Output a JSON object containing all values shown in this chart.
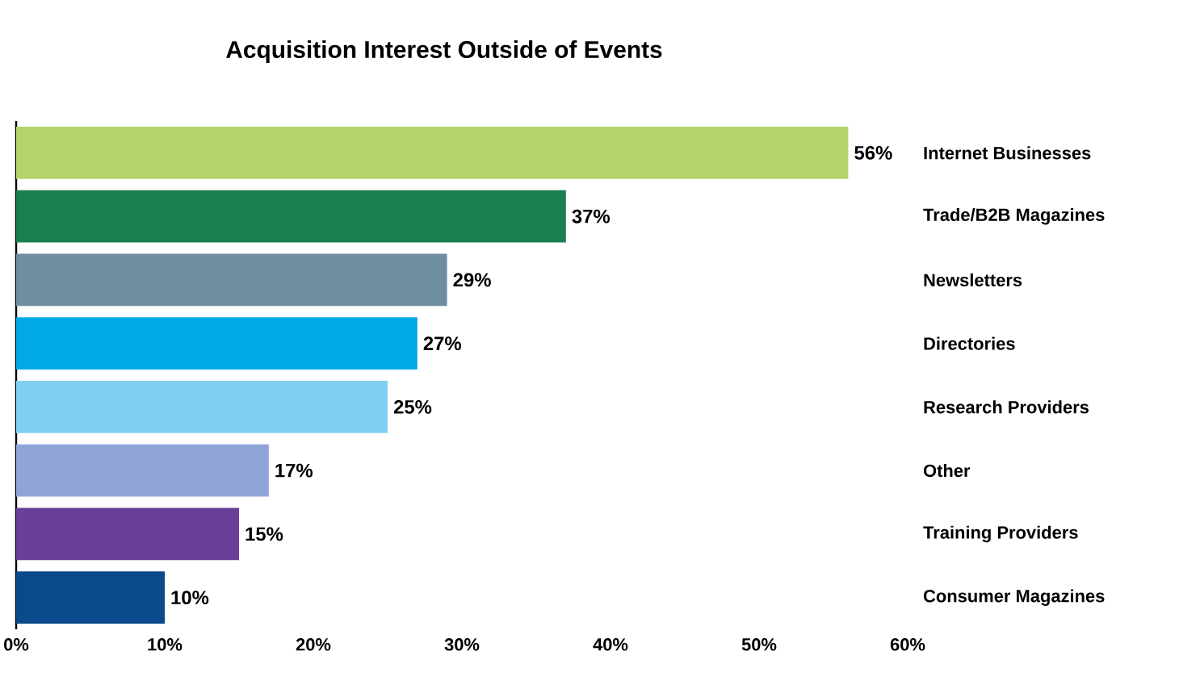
{
  "chart_data": {
    "type": "bar",
    "orientation": "horizontal",
    "title": "Acquisition Interest Outside of Events",
    "categories": [
      "Internet Businesses",
      "Trade/B2B Magazines",
      "Newsletters",
      "Directories",
      "Research Providers",
      "Other",
      "Training Providers",
      "Consumer Magazines"
    ],
    "values": [
      56,
      37,
      29,
      27,
      25,
      17,
      15,
      10
    ],
    "value_labels": [
      "56%",
      "37%",
      "29%",
      "27%",
      "25%",
      "17%",
      "15%",
      "10%"
    ],
    "colors": [
      "#b5d56a",
      "#1a7f4e",
      "#6f8fa0",
      "#00a9e6",
      "#7fd0f0",
      "#8fa5d8",
      "#6a3f98",
      "#0a4a8a"
    ],
    "xlim": [
      0,
      60
    ],
    "xticks": [
      {
        "value": 0,
        "label": "0%"
      },
      {
        "value": 10,
        "label": "10%"
      },
      {
        "value": 20,
        "label": "20%"
      },
      {
        "value": 30,
        "label": "30%"
      },
      {
        "value": 40,
        "label": "40%"
      },
      {
        "value": 50,
        "label": "50%"
      },
      {
        "value": 60,
        "label": "60%"
      }
    ],
    "grid": false
  }
}
